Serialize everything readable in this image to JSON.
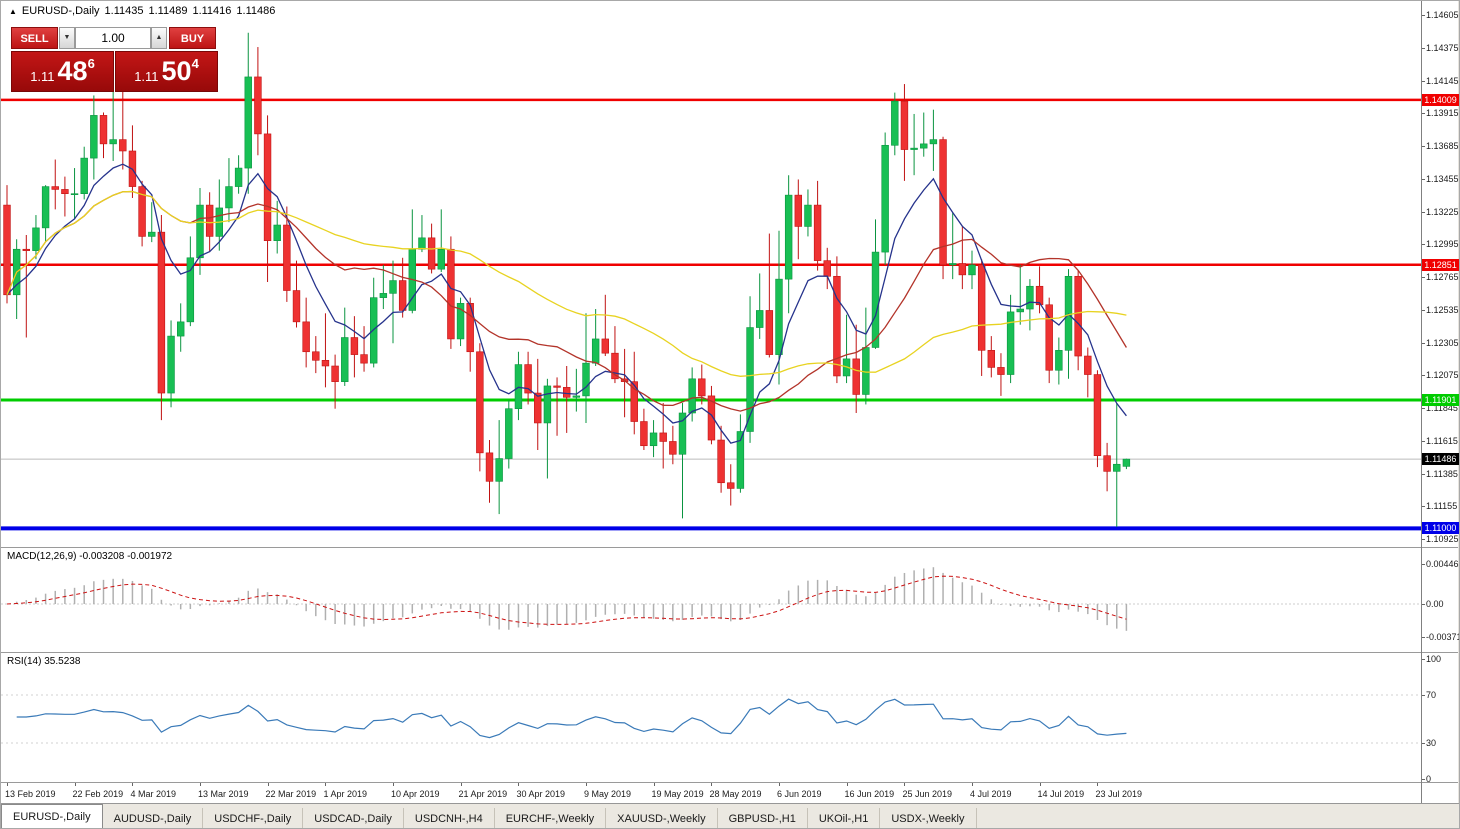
{
  "header": {
    "symbol_marker_icon": "▲",
    "symbol": "EURUSD-,Daily",
    "open": "1.11435",
    "high": "1.11489",
    "low": "1.11416",
    "close": "1.11486"
  },
  "quote_panel": {
    "sell_label": "SELL",
    "buy_label": "BUY",
    "volume": "1.00",
    "volume_down_icon": "▼",
    "volume_up_icon": "▲",
    "bid": {
      "base": "1.11",
      "pips": "48",
      "point": "6"
    },
    "ask": {
      "base": "1.11",
      "pips": "50",
      "point": "4"
    }
  },
  "price_axis": {
    "top_price": 1.14605,
    "bottom_price": 1.10925,
    "ticks": [
      "1.14605",
      "1.14375",
      "1.14145",
      "1.13915",
      "1.13685",
      "1.13455",
      "1.13225",
      "1.12995",
      "1.12765",
      "1.12535",
      "1.12305",
      "1.12075",
      "1.11845",
      "1.11615",
      "1.11385",
      "1.11155",
      "1.10925"
    ]
  },
  "levels": [
    {
      "name": "resistance-line-upper",
      "price": 1.14009,
      "label": "1.14009",
      "color": "#f00000",
      "thickness": 2.5
    },
    {
      "name": "resistance-line-mid",
      "price": 1.12851,
      "label": "1.12851",
      "color": "#f00000",
      "thickness": 2.5
    },
    {
      "name": "support-line-green",
      "price": 1.11901,
      "label": "1.11901",
      "color": "#00cc00",
      "thickness": 3
    },
    {
      "name": "support-line-blue",
      "price": 1.11,
      "label": "1.11000",
      "color": "#0000e8",
      "thickness": 4
    }
  ],
  "current_price": {
    "value": 1.11486,
    "label": "1.11486",
    "label_bg": "#000000",
    "line_color": "#bbbbbb"
  },
  "macd_panel": {
    "title": "MACD(12,26,9) -0.003208 -0.001972",
    "axis": [
      {
        "label": "0.004465",
        "value": 0.004465
      },
      {
        "label": "0.00",
        "value": 0
      },
      {
        "label": "-0.003716",
        "value": -0.003716
      }
    ]
  },
  "rsi_panel": {
    "title": "RSI(14) 35.5238",
    "axis": [
      {
        "label": "100",
        "value": 100
      },
      {
        "label": "70",
        "value": 70
      },
      {
        "label": "30",
        "value": 30
      },
      {
        "label": "0",
        "value": 0
      }
    ],
    "levels": [
      70,
      30
    ]
  },
  "date_axis": {
    "ticks": [
      {
        "index": 0,
        "label": "13 Feb 2019"
      },
      {
        "index": 7,
        "label": "22 Feb 2019"
      },
      {
        "index": 13,
        "label": "4 Mar 2019"
      },
      {
        "index": 20,
        "label": "13 Mar 2019"
      },
      {
        "index": 27,
        "label": "22 Mar 2019"
      },
      {
        "index": 33,
        "label": "1 Apr 2019"
      },
      {
        "index": 40,
        "label": "10 Apr 2019"
      },
      {
        "index": 47,
        "label": "21 Apr 2019"
      },
      {
        "index": 53,
        "label": "30 Apr 2019"
      },
      {
        "index": 60,
        "label": "9 May 2019"
      },
      {
        "index": 67,
        "label": "19 May 2019"
      },
      {
        "index": 73,
        "label": "28 May 2019"
      },
      {
        "index": 80,
        "label": "6 Jun 2019"
      },
      {
        "index": 87,
        "label": "16 Jun 2019"
      },
      {
        "index": 93,
        "label": "25 Jun 2019"
      },
      {
        "index": 100,
        "label": "4 Jul 2019"
      },
      {
        "index": 107,
        "label": "14 Jul 2019"
      },
      {
        "index": 113,
        "label": "23 Jul 2019"
      }
    ]
  },
  "tabs": [
    {
      "label": "EURUSD-,Daily",
      "active": true
    },
    {
      "label": "AUDUSD-,Daily"
    },
    {
      "label": "USDCHF-,Daily"
    },
    {
      "label": "USDCAD-,Daily"
    },
    {
      "label": "USDCNH-,H4"
    },
    {
      "label": "EURCHF-,Weekly"
    },
    {
      "label": "XAUUSD-,Weekly"
    },
    {
      "label": "GBPUSD-,H1"
    },
    {
      "label": "UKOil-,H1"
    },
    {
      "label": "USDX-,Weekly"
    }
  ],
  "chart_data": {
    "type": "candlestick",
    "symbol": "EURUSD-",
    "timeframe": "Daily",
    "title": "EURUSD-,Daily",
    "ylim": [
      1.10925,
      1.14605
    ],
    "up_color": "#18bf54",
    "up_border": "#0a9440",
    "down_color": "#ee3232",
    "down_border": "#c01212",
    "candles": [
      [
        1.1327,
        1.1341,
        1.1258,
        1.1264
      ],
      [
        1.1264,
        1.1303,
        1.1247,
        1.1296
      ],
      [
        1.1296,
        1.1306,
        1.1234,
        1.1295
      ],
      [
        1.1295,
        1.132,
        1.1289,
        1.1311
      ],
      [
        1.1311,
        1.1341,
        1.1301,
        1.134
      ],
      [
        1.134,
        1.1359,
        1.1324,
        1.1338
      ],
      [
        1.1338,
        1.1347,
        1.1319,
        1.1335
      ],
      [
        1.1335,
        1.1353,
        1.1317,
        1.1335
      ],
      [
        1.1335,
        1.1368,
        1.1331,
        1.136
      ],
      [
        1.136,
        1.1404,
        1.1345,
        1.139
      ],
      [
        1.139,
        1.1392,
        1.136,
        1.137
      ],
      [
        1.137,
        1.142,
        1.1358,
        1.1373
      ],
      [
        1.1373,
        1.1409,
        1.1352,
        1.1365
      ],
      [
        1.1365,
        1.1383,
        1.1332,
        1.134
      ],
      [
        1.134,
        1.1344,
        1.1298,
        1.1305
      ],
      [
        1.1305,
        1.1329,
        1.1301,
        1.1308
      ],
      [
        1.1308,
        1.132,
        1.1176,
        1.1195
      ],
      [
        1.1195,
        1.1246,
        1.1185,
        1.1235
      ],
      [
        1.1235,
        1.1258,
        1.1224,
        1.1245
      ],
      [
        1.1245,
        1.1305,
        1.1242,
        1.129
      ],
      [
        1.129,
        1.1339,
        1.1278,
        1.1327
      ],
      [
        1.1327,
        1.1336,
        1.1294,
        1.1305
      ],
      [
        1.1305,
        1.1345,
        1.1295,
        1.1325
      ],
      [
        1.1325,
        1.136,
        1.1315,
        1.134
      ],
      [
        1.134,
        1.1362,
        1.1335,
        1.1353
      ],
      [
        1.1353,
        1.1448,
        1.1335,
        1.1417
      ],
      [
        1.1417,
        1.1438,
        1.1362,
        1.1377
      ],
      [
        1.1377,
        1.139,
        1.1273,
        1.1302
      ],
      [
        1.1302,
        1.133,
        1.1293,
        1.1313
      ],
      [
        1.1313,
        1.1326,
        1.1259,
        1.1267
      ],
      [
        1.1267,
        1.1288,
        1.1241,
        1.1245
      ],
      [
        1.1245,
        1.1262,
        1.1213,
        1.1224
      ],
      [
        1.1224,
        1.1235,
        1.1209,
        1.1218
      ],
      [
        1.1218,
        1.1251,
        1.1199,
        1.1214
      ],
      [
        1.1214,
        1.1222,
        1.1184,
        1.1203
      ],
      [
        1.1203,
        1.1255,
        1.12,
        1.1234
      ],
      [
        1.1234,
        1.1249,
        1.1206,
        1.1222
      ],
      [
        1.1222,
        1.1242,
        1.121,
        1.1216
      ],
      [
        1.1216,
        1.1276,
        1.1213,
        1.1262
      ],
      [
        1.1262,
        1.1285,
        1.1254,
        1.1265
      ],
      [
        1.1265,
        1.1288,
        1.123,
        1.1274
      ],
      [
        1.1274,
        1.129,
        1.1248,
        1.1253
      ],
      [
        1.1253,
        1.1324,
        1.1251,
        1.1296
      ],
      [
        1.1296,
        1.132,
        1.1294,
        1.1304
      ],
      [
        1.1304,
        1.1314,
        1.1279,
        1.1282
      ],
      [
        1.1282,
        1.1324,
        1.128,
        1.1296
      ],
      [
        1.1296,
        1.1305,
        1.1226,
        1.1233
      ],
      [
        1.1233,
        1.1262,
        1.1228,
        1.1258
      ],
      [
        1.1258,
        1.1262,
        1.121,
        1.1224
      ],
      [
        1.1224,
        1.123,
        1.114,
        1.1153
      ],
      [
        1.1153,
        1.1162,
        1.1118,
        1.1133
      ],
      [
        1.1133,
        1.1176,
        1.111,
        1.1149
      ],
      [
        1.1149,
        1.119,
        1.1142,
        1.1184
      ],
      [
        1.1184,
        1.1224,
        1.1176,
        1.1215
      ],
      [
        1.1215,
        1.1224,
        1.1187,
        1.1195
      ],
      [
        1.1195,
        1.1219,
        1.1155,
        1.1174
      ],
      [
        1.1174,
        1.1205,
        1.1135,
        1.12
      ],
      [
        1.12,
        1.1206,
        1.1165,
        1.1199
      ],
      [
        1.1199,
        1.1214,
        1.1167,
        1.1192
      ],
      [
        1.1192,
        1.1212,
        1.1182,
        1.1193
      ],
      [
        1.1193,
        1.1251,
        1.1174,
        1.1216
      ],
      [
        1.1216,
        1.1254,
        1.1214,
        1.1233
      ],
      [
        1.1233,
        1.1264,
        1.1221,
        1.1223
      ],
      [
        1.1223,
        1.1242,
        1.1202,
        1.1205
      ],
      [
        1.1205,
        1.1226,
        1.1178,
        1.1203
      ],
      [
        1.1203,
        1.1224,
        1.1166,
        1.1175
      ],
      [
        1.1175,
        1.1184,
        1.1155,
        1.1158
      ],
      [
        1.1158,
        1.1176,
        1.115,
        1.1167
      ],
      [
        1.1167,
        1.1188,
        1.1142,
        1.1161
      ],
      [
        1.1161,
        1.1172,
        1.1145,
        1.1152
      ],
      [
        1.1152,
        1.1188,
        1.1107,
        1.1181
      ],
      [
        1.1181,
        1.1213,
        1.1175,
        1.1205
      ],
      [
        1.1205,
        1.1215,
        1.1187,
        1.1193
      ],
      [
        1.1193,
        1.12,
        1.1159,
        1.1162
      ],
      [
        1.1162,
        1.1172,
        1.1125,
        1.1132
      ],
      [
        1.1132,
        1.1145,
        1.1116,
        1.1128
      ],
      [
        1.1128,
        1.118,
        1.1125,
        1.1168
      ],
      [
        1.1168,
        1.1263,
        1.116,
        1.1241
      ],
      [
        1.1241,
        1.1279,
        1.1233,
        1.1253
      ],
      [
        1.1253,
        1.1307,
        1.122,
        1.1222
      ],
      [
        1.1222,
        1.1309,
        1.1201,
        1.1275
      ],
      [
        1.1275,
        1.1348,
        1.1251,
        1.1334
      ],
      [
        1.1334,
        1.1345,
        1.1289,
        1.1312
      ],
      [
        1.1312,
        1.1338,
        1.1305,
        1.1327
      ],
      [
        1.1327,
        1.1344,
        1.1281,
        1.1288
      ],
      [
        1.1288,
        1.1297,
        1.1268,
        1.1277
      ],
      [
        1.1277,
        1.1291,
        1.1202,
        1.1207
      ],
      [
        1.1207,
        1.125,
        1.1202,
        1.1219
      ],
      [
        1.1219,
        1.1243,
        1.1181,
        1.1194
      ],
      [
        1.1194,
        1.1255,
        1.1187,
        1.1227
      ],
      [
        1.1227,
        1.1317,
        1.1226,
        1.1294
      ],
      [
        1.1294,
        1.1378,
        1.1285,
        1.1369
      ],
      [
        1.1369,
        1.1406,
        1.1362,
        1.14
      ],
      [
        1.14,
        1.1412,
        1.1344,
        1.1366
      ],
      [
        1.1366,
        1.1391,
        1.1348,
        1.1367
      ],
      [
        1.1367,
        1.1392,
        1.1361,
        1.137
      ],
      [
        1.137,
        1.1394,
        1.1351,
        1.1373
      ],
      [
        1.1373,
        1.1375,
        1.1275,
        1.1285
      ],
      [
        1.1285,
        1.1322,
        1.1275,
        1.1286
      ],
      [
        1.1286,
        1.1312,
        1.1268,
        1.1278
      ],
      [
        1.1278,
        1.1295,
        1.1268,
        1.1285
      ],
      [
        1.1285,
        1.1289,
        1.1207,
        1.1225
      ],
      [
        1.1225,
        1.1235,
        1.1206,
        1.1213
      ],
      [
        1.1213,
        1.1223,
        1.1193,
        1.1208
      ],
      [
        1.1208,
        1.1264,
        1.1202,
        1.1252
      ],
      [
        1.1252,
        1.1285,
        1.1243,
        1.1254
      ],
      [
        1.1254,
        1.1275,
        1.1239,
        1.127
      ],
      [
        1.127,
        1.1284,
        1.1251,
        1.1257
      ],
      [
        1.1257,
        1.1262,
        1.1202,
        1.1211
      ],
      [
        1.1211,
        1.1234,
        1.1201,
        1.1225
      ],
      [
        1.1225,
        1.1282,
        1.1205,
        1.1277
      ],
      [
        1.1277,
        1.1281,
        1.1211,
        1.1221
      ],
      [
        1.1221,
        1.1227,
        1.1192,
        1.1208
      ],
      [
        1.1208,
        1.1211,
        1.1143,
        1.1151
      ],
      [
        1.1151,
        1.116,
        1.1126,
        1.114
      ],
      [
        1.114,
        1.1188,
        1.1101,
        1.1145
      ],
      [
        1.11435,
        1.11489,
        1.11416,
        1.11486
      ]
    ],
    "moving_averages": [
      {
        "kind": "ema",
        "period": 8,
        "color": "#26338c",
        "width": 1.3
      },
      {
        "kind": "sma",
        "period": 20,
        "color": "#b3342a",
        "width": 1.3
      },
      {
        "kind": "sma",
        "period": 45,
        "color": "#e8d321",
        "width": 1.3
      }
    ],
    "macd": {
      "fast": 12,
      "slow": 26,
      "signal_period": 9,
      "histogram_color": "#b0b0b0",
      "signal_color": "#cc1111",
      "current_main": -0.003208,
      "current_signal": -0.001972
    },
    "rsi": {
      "period": 14,
      "color": "#3a7ab8",
      "current": 35.5238
    }
  }
}
